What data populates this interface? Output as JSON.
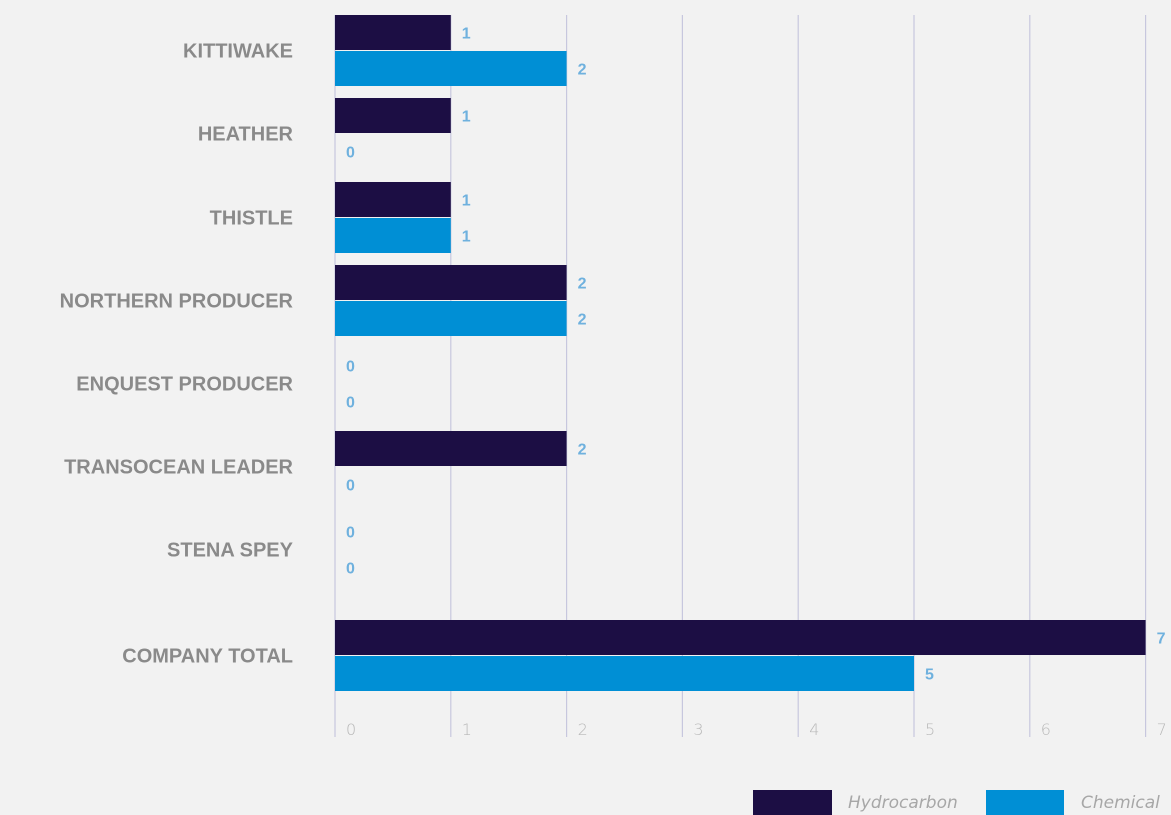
{
  "chart_data": {
    "type": "bar",
    "orientation": "horizontal",
    "categories": [
      "KITTIWAKE",
      "HEATHER",
      "THISTLE",
      "NORTHERN PRODUCER",
      "ENQUEST PRODUCER",
      "TRANSOCEAN LEADER",
      "STENA SPEY",
      "COMPANY TOTAL"
    ],
    "series": [
      {
        "name": "Hydrocarbon",
        "color": "#1c0e44",
        "values": [
          1,
          1,
          1,
          2,
          0,
          2,
          0,
          7
        ]
      },
      {
        "name": "Chemical",
        "color": "#008fd5",
        "values": [
          2,
          0,
          1,
          2,
          0,
          0,
          0,
          5
        ]
      }
    ],
    "x_ticks": [
      "0",
      "1",
      "2",
      "3",
      "4",
      "5",
      "6",
      "7"
    ],
    "xlim": [
      0,
      7
    ],
    "grid": true,
    "legend_position": "bottom-right",
    "data_labels": true,
    "title": "",
    "xlabel": "",
    "ylabel": ""
  }
}
